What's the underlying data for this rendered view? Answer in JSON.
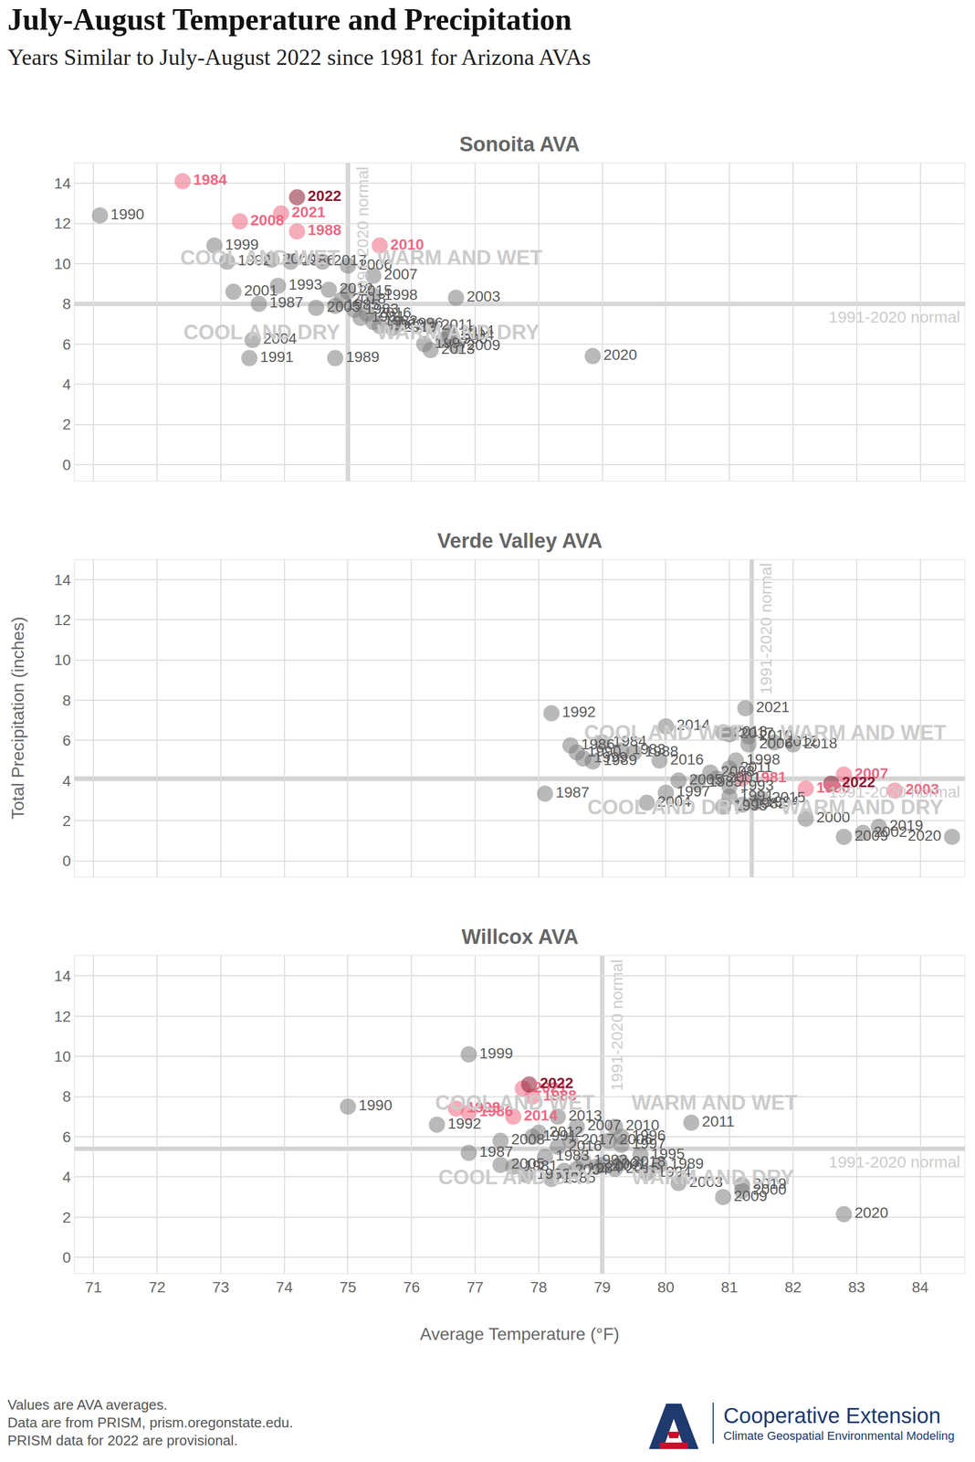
{
  "chart_data": {
    "type": "scatter",
    "title": "July-August Temperature and Precipitation",
    "subtitle": "Years Similar to July-August 2022 since 1981 for Arizona AVAs",
    "x_label": "Average Temperature (°F)",
    "y_label": "Total Precipitation (inches)",
    "xlim": [
      70.7,
      84.7
    ],
    "xticks": [
      71,
      72,
      73,
      74,
      75,
      76,
      77,
      78,
      79,
      80,
      81,
      82,
      83,
      84
    ],
    "ylim": [
      -0.8,
      15
    ],
    "yticks": [
      0,
      2,
      4,
      6,
      8,
      10,
      12,
      14
    ],
    "grid": true,
    "color": "#808080",
    "normal_label": "1991-2020 normal",
    "quadrant_labels": {
      "cool_wet": "COOL AND WET",
      "warm_wet": "WARM AND WET",
      "cool_dry": "COOL AND DRY",
      "warm_dry": "WARM AND DRY"
    },
    "notes": [
      "Values are AVA averages.",
      "Data are from PRISM, prism.oregonstate.edu.",
      "PRISM data for 2022 are provisional."
    ],
    "branding": [
      "Cooperative Extension",
      "Climate Geospatial Environmental Modeling"
    ],
    "panels": [
      {
        "title": "Sonoita AVA",
        "normal_x": 75.0,
        "normal_y": 8.0,
        "labels": [
          "1981",
          "1982",
          "1983",
          "1984",
          "1985",
          "1986",
          "1987",
          "1988",
          "1989",
          "1990",
          "1991",
          "1992",
          "1993",
          "1994",
          "1995",
          "1996",
          "1997",
          "1998",
          "1999",
          "2000",
          "2001",
          "2002",
          "2003",
          "2004",
          "2005",
          "2006",
          "2007",
          "2008",
          "2009",
          "2010",
          "2011",
          "2012",
          "2013",
          "2014",
          "2015",
          "2016",
          "2017",
          "2018",
          "2019",
          "2020",
          "2021",
          "2022"
        ],
        "x": [
          75.2,
          75.4,
          75.1,
          72.4,
          74.8,
          74.1,
          73.6,
          74.2,
          74.8,
          71.1,
          73.45,
          73.1,
          73.9,
          76.6,
          76.5,
          75.8,
          76.2,
          75.4,
          72.9,
          73.8,
          73.2,
          75.5,
          76.7,
          73.5,
          74.5,
          75.0,
          75.4,
          73.3,
          76.7,
          75.5,
          76.3,
          74.7,
          76.3,
          76.6,
          75.0,
          75.3,
          74.6,
          74.9,
          75.7,
          78.85,
          73.95,
          74.2
        ],
        "y": [
          7.3,
          7.1,
          7.7,
          14.1,
          7.9,
          10.1,
          8.0,
          11.6,
          5.3,
          12.4,
          5.3,
          10.1,
          8.9,
          6.4,
          6.2,
          7.0,
          6.0,
          8.4,
          10.9,
          10.2,
          8.6,
          6.9,
          8.3,
          6.2,
          7.8,
          9.9,
          9.4,
          12.1,
          5.9,
          10.9,
          6.9,
          8.7,
          5.7,
          6.6,
          8.6,
          7.5,
          10.1,
          8.2,
          6.8,
          5.4,
          12.5,
          13.3
        ],
        "colors": [
          "#808080",
          "#808080",
          "#808080",
          "#ee6a84",
          "#808080",
          "#808080",
          "#808080",
          "#ee6a84",
          "#808080",
          "#808080",
          "#808080",
          "#808080",
          "#808080",
          "#808080",
          "#808080",
          "#808080",
          "#808080",
          "#808080",
          "#808080",
          "#808080",
          "#808080",
          "#808080",
          "#808080",
          "#808080",
          "#808080",
          "#808080",
          "#808080",
          "#ee6a84",
          "#808080",
          "#ee6a84",
          "#808080",
          "#808080",
          "#808080",
          "#808080",
          "#808080",
          "#808080",
          "#808080",
          "#808080",
          "#808080",
          "#808080",
          "#ee6a84",
          "#8c1a33"
        ]
      },
      {
        "title": "Verde Valley AVA",
        "normal_x": 81.35,
        "normal_y": 4.1,
        "labels": [
          "1981",
          "1982",
          "1983",
          "1984",
          "1985",
          "1986",
          "1987",
          "1988",
          "1989",
          "1990",
          "1991",
          "1992",
          "1993",
          "1994",
          "1995",
          "1996",
          "1997",
          "1998",
          "1999",
          "2000",
          "2001",
          "2002",
          "2003",
          "2004",
          "2005",
          "2006",
          "2007",
          "2008",
          "2009",
          "2010",
          "2011",
          "2012",
          "2013",
          "2014",
          "2015",
          "2016",
          "2017",
          "2018",
          "2019",
          "2020",
          "2021",
          "2022"
        ],
        "x": [
          81.2,
          81.2,
          79.3,
          79.0,
          80.5,
          78.5,
          78.1,
          79.5,
          78.85,
          78.6,
          81.0,
          78.2,
          81.0,
          81.4,
          80.9,
          82.2,
          80.0,
          81.1,
          78.7,
          82.2,
          80.8,
          83.1,
          83.6,
          79.7,
          80.2,
          81.3,
          82.8,
          80.7,
          82.8,
          81.3,
          81.0,
          81.7,
          80.9,
          80.0,
          81.5,
          79.9,
          81.0,
          82.0,
          83.35,
          84.5,
          81.25,
          82.6
        ],
        "y": [
          4.1,
          2.8,
          5.5,
          5.9,
          3.9,
          5.75,
          3.35,
          5.4,
          4.95,
          5.4,
          3.2,
          7.35,
          3.7,
          2.9,
          2.7,
          3.6,
          3.4,
          5.0,
          5.1,
          2.1,
          4.1,
          1.4,
          3.5,
          2.9,
          4.0,
          5.8,
          4.3,
          4.4,
          1.2,
          6.2,
          4.6,
          5.9,
          6.4,
          6.7,
          3.1,
          5.0,
          6.3,
          5.8,
          1.7,
          1.2,
          7.6,
          3.85
        ],
        "colors": [
          "#ee6a84",
          "#808080",
          "#808080",
          "#808080",
          "#808080",
          "#808080",
          "#808080",
          "#808080",
          "#808080",
          "#808080",
          "#808080",
          "#808080",
          "#808080",
          "#808080",
          "#808080",
          "#ee6a84",
          "#808080",
          "#808080",
          "#808080",
          "#808080",
          "#808080",
          "#808080",
          "#ee6a84",
          "#808080",
          "#808080",
          "#808080",
          "#ee6a84",
          "#808080",
          "#808080",
          "#808080",
          "#808080",
          "#808080",
          "#808080",
          "#808080",
          "#808080",
          "#808080",
          "#808080",
          "#808080",
          "#808080",
          "#808080",
          "#808080",
          "#8c1a33"
        ]
      },
      {
        "title": "Willcox AVA",
        "normal_x": 79.0,
        "normal_y": 5.4,
        "labels": [
          "1981",
          "1982",
          "1983",
          "1984",
          "1985",
          "1986",
          "1987",
          "1988",
          "1989",
          "1990",
          "1991",
          "1992",
          "1993",
          "1994",
          "1995",
          "1996",
          "1997",
          "1998",
          "1999",
          "2000",
          "2001",
          "2002",
          "2003",
          "2004",
          "2005",
          "2006",
          "2007",
          "2008",
          "2009",
          "2010",
          "2011",
          "2012",
          "2013",
          "2014",
          "2015",
          "2016",
          "2017",
          "2018",
          "2019",
          "2020",
          "2021",
          "2022"
        ],
        "x": [
          77.6,
          77.8,
          78.1,
          78.6,
          78.2,
          76.9,
          76.9,
          77.9,
          79.9,
          75.0,
          77.9,
          76.4,
          78.7,
          79.7,
          79.6,
          79.3,
          79.3,
          76.7,
          76.9,
          81.2,
          79.0,
          78.9,
          80.2,
          78.4,
          77.4,
          79.1,
          78.6,
          77.4,
          80.9,
          79.2,
          80.4,
          78.0,
          78.3,
          77.6,
          79.2,
          78.3,
          78.5,
          79.3,
          81.2,
          82.8,
          77.75,
          77.85
        ],
        "y": [
          4.5,
          4.1,
          5.0,
          4.4,
          3.9,
          7.2,
          5.2,
          8.0,
          4.6,
          7.5,
          6.0,
          6.6,
          4.8,
          4.2,
          5.1,
          6.0,
          5.6,
          7.4,
          10.1,
          3.3,
          4.6,
          4.5,
          3.7,
          4.3,
          4.6,
          5.8,
          6.5,
          5.8,
          3.0,
          6.5,
          6.7,
          6.2,
          7.0,
          7.0,
          4.4,
          5.5,
          5.8,
          4.7,
          3.6,
          2.15,
          8.4,
          8.6
        ],
        "colors": [
          "#808080",
          "#808080",
          "#808080",
          "#808080",
          "#808080",
          "#ee6a84",
          "#808080",
          "#ee6a84",
          "#808080",
          "#808080",
          "#808080",
          "#808080",
          "#808080",
          "#808080",
          "#808080",
          "#808080",
          "#808080",
          "#ee6a84",
          "#808080",
          "#808080",
          "#808080",
          "#808080",
          "#808080",
          "#808080",
          "#808080",
          "#808080",
          "#808080",
          "#808080",
          "#808080",
          "#808080",
          "#808080",
          "#808080",
          "#808080",
          "#ee6a84",
          "#808080",
          "#808080",
          "#808080",
          "#808080",
          "#808080",
          "#808080",
          "#ee6a84",
          "#8c1a33"
        ]
      }
    ]
  }
}
